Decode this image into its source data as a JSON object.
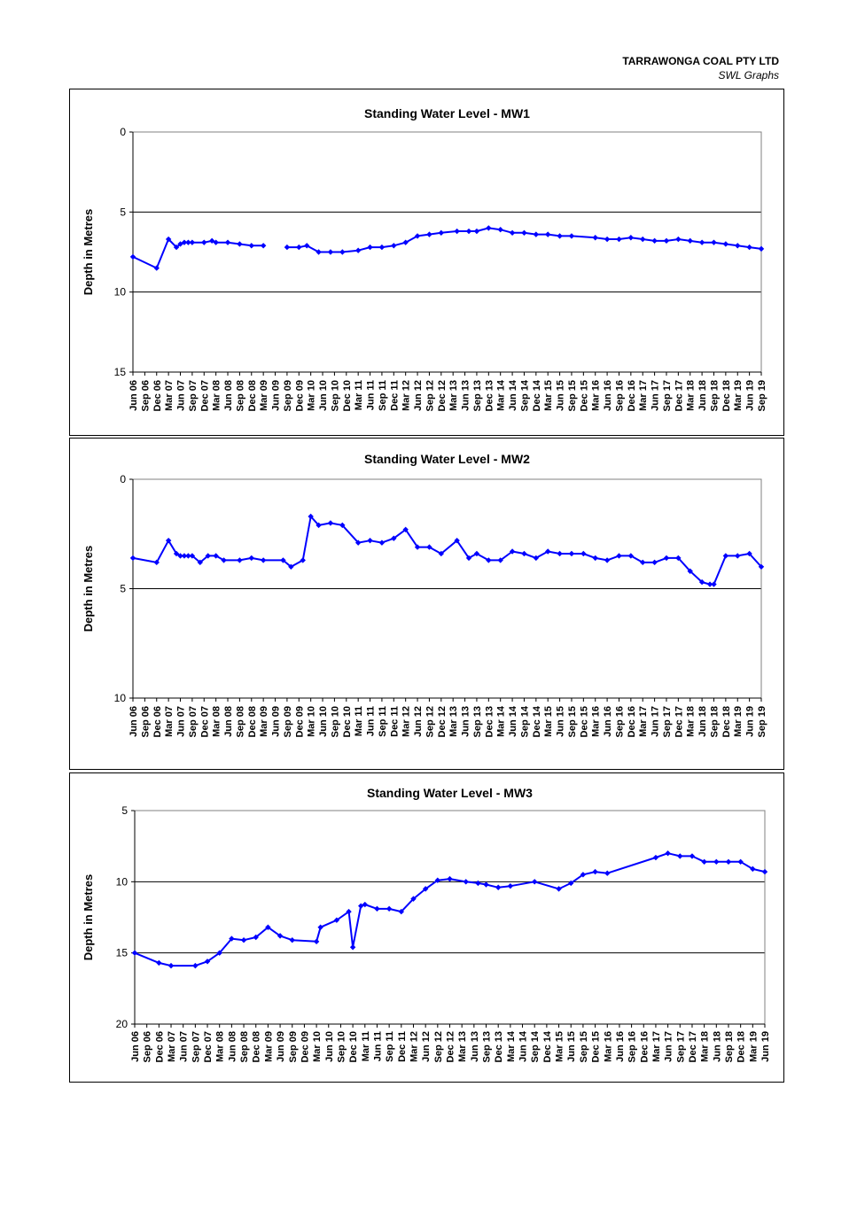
{
  "header": {
    "company": "TARRAWONGA COAL PTY LTD",
    "subtitle": "SWL Graphs"
  },
  "style": {
    "line_color": "#0000ff",
    "grid_color": "#000000"
  },
  "chart_data": [
    {
      "type": "line",
      "title": "Standing Water Level - MW1",
      "ylabel": "Depth in Metres",
      "xlabel": "",
      "y_inverted": true,
      "ylim": [
        0,
        15
      ],
      "yticks": [
        0,
        5,
        10,
        15
      ],
      "grid": "horizontal",
      "legend": "none",
      "x_range": [
        "2006-06",
        "2019-09"
      ],
      "x_tick_labels": [
        "Jun 06",
        "Sep 06",
        "Dec 06",
        "Mar 07",
        "Jun 07",
        "Sep 07",
        "Dec 07",
        "Mar 08",
        "Jun 08",
        "Sep 08",
        "Dec 08",
        "Mar 09",
        "Jun 09",
        "Sep 09",
        "Dec 09",
        "Mar 10",
        "Jun 10",
        "Sep 10",
        "Dec 10",
        "Mar 11",
        "Jun 11",
        "Sep 11",
        "Dec 11",
        "Mar 12",
        "Jun 12",
        "Sep 12",
        "Dec 12",
        "Mar 13",
        "Jun 13",
        "Sep 13",
        "Dec 13",
        "Mar 14",
        "Jun 14",
        "Sep 14",
        "Dec 14",
        "Mar 15",
        "Jun 15",
        "Sep 15",
        "Dec 15",
        "Mar 16",
        "Jun 16",
        "Sep 16",
        "Dec 16",
        "Mar 17",
        "Jun 17",
        "Sep 17",
        "Dec 17",
        "Mar 18",
        "Jun 18",
        "Sep 18",
        "Dec 18",
        "Mar 19",
        "Jun 19",
        "Sep 19"
      ],
      "series": [
        {
          "segments": [
            [
              [
                "2006-06",
                7.8
              ],
              [
                "2006-12",
                8.5
              ],
              [
                "2007-03",
                6.7
              ],
              [
                "2007-05",
                7.2
              ],
              [
                "2007-06",
                7.0
              ],
              [
                "2007-07",
                6.9
              ],
              [
                "2007-08",
                6.9
              ],
              [
                "2007-09",
                6.9
              ],
              [
                "2007-12",
                6.9
              ],
              [
                "2008-02",
                6.8
              ],
              [
                "2008-03",
                6.9
              ],
              [
                "2008-06",
                6.9
              ],
              [
                "2008-09",
                7.0
              ],
              [
                "2008-12",
                7.1
              ],
              [
                "2009-03",
                7.1
              ]
            ],
            [
              [
                "2009-09",
                7.2
              ],
              [
                "2009-12",
                7.2
              ],
              [
                "2010-02",
                7.1
              ],
              [
                "2010-05",
                7.5
              ],
              [
                "2010-08",
                7.5
              ],
              [
                "2010-11",
                7.5
              ],
              [
                "2011-03",
                7.4
              ],
              [
                "2011-06",
                7.2
              ],
              [
                "2011-09",
                7.2
              ],
              [
                "2011-12",
                7.1
              ],
              [
                "2012-03",
                6.9
              ],
              [
                "2012-06",
                6.5
              ],
              [
                "2012-09",
                6.4
              ],
              [
                "2012-12",
                6.3
              ],
              [
                "2013-04",
                6.2
              ],
              [
                "2013-07",
                6.2
              ],
              [
                "2013-09",
                6.2
              ],
              [
                "2013-12",
                6.0
              ],
              [
                "2014-03",
                6.1
              ],
              [
                "2014-06",
                6.3
              ],
              [
                "2014-09",
                6.3
              ],
              [
                "2014-12",
                6.4
              ],
              [
                "2015-03",
                6.4
              ],
              [
                "2015-06",
                6.5
              ],
              [
                "2015-09",
                6.5
              ],
              [
                "2016-03",
                6.6
              ],
              [
                "2016-06",
                6.7
              ],
              [
                "2016-09",
                6.7
              ],
              [
                "2016-12",
                6.6
              ],
              [
                "2017-03",
                6.7
              ],
              [
                "2017-06",
                6.8
              ],
              [
                "2017-09",
                6.8
              ],
              [
                "2017-12",
                6.7
              ],
              [
                "2018-03",
                6.8
              ],
              [
                "2018-06",
                6.9
              ],
              [
                "2018-09",
                6.9
              ],
              [
                "2018-12",
                7.0
              ],
              [
                "2019-03",
                7.1
              ],
              [
                "2019-06",
                7.2
              ],
              [
                "2019-09",
                7.3
              ]
            ]
          ]
        }
      ]
    },
    {
      "type": "line",
      "title": "Standing Water Level - MW2",
      "ylabel": "Depth in Metres",
      "xlabel": "",
      "y_inverted": true,
      "ylim": [
        0,
        10
      ],
      "yticks": [
        0,
        5,
        10
      ],
      "grid": "horizontal",
      "legend": "none",
      "x_range": [
        "2006-06",
        "2019-09"
      ],
      "x_tick_labels": [
        "Jun 06",
        "Sep 06",
        "Dec 06",
        "Mar 07",
        "Jun 07",
        "Sep 07",
        "Dec 07",
        "Mar 08",
        "Jun 08",
        "Sep 08",
        "Dec 08",
        "Mar 09",
        "Jun 09",
        "Sep 09",
        "Dec 09",
        "Mar 10",
        "Jun 10",
        "Sep 10",
        "Dec 10",
        "Mar 11",
        "Jun 11",
        "Sep 11",
        "Dec 11",
        "Mar 12",
        "Jun 12",
        "Sep 12",
        "Dec 12",
        "Mar 13",
        "Jun 13",
        "Sep 13",
        "Dec 13",
        "Mar 14",
        "Jun 14",
        "Sep 14",
        "Dec 14",
        "Mar 15",
        "Jun 15",
        "Sep 15",
        "Dec 15",
        "Mar 16",
        "Jun 16",
        "Sep 16",
        "Dec 16",
        "Mar 17",
        "Jun 17",
        "Sep 17",
        "Dec 17",
        "Mar 18",
        "Jun 18",
        "Sep 18",
        "Dec 18",
        "Mar 19",
        "Jun 19",
        "Sep 19"
      ],
      "series": [
        {
          "segments": [
            [
              [
                "2006-06",
                3.6
              ],
              [
                "2006-12",
                3.8
              ],
              [
                "2007-03",
                2.8
              ],
              [
                "2007-05",
                3.4
              ],
              [
                "2007-06",
                3.5
              ],
              [
                "2007-07",
                3.5
              ],
              [
                "2007-08",
                3.5
              ],
              [
                "2007-09",
                3.5
              ],
              [
                "2007-11",
                3.8
              ],
              [
                "2008-01",
                3.5
              ],
              [
                "2008-03",
                3.5
              ],
              [
                "2008-05",
                3.7
              ],
              [
                "2008-09",
                3.7
              ],
              [
                "2008-12",
                3.6
              ],
              [
                "2009-03",
                3.7
              ],
              [
                "2009-08",
                3.7
              ],
              [
                "2009-10",
                4.0
              ],
              [
                "2010-01",
                3.7
              ],
              [
                "2010-03",
                1.7
              ],
              [
                "2010-05",
                2.1
              ],
              [
                "2010-08",
                2.0
              ],
              [
                "2010-11",
                2.1
              ],
              [
                "2011-03",
                2.9
              ],
              [
                "2011-06",
                2.8
              ],
              [
                "2011-09",
                2.9
              ],
              [
                "2011-12",
                2.7
              ],
              [
                "2012-03",
                2.3
              ],
              [
                "2012-06",
                3.1
              ],
              [
                "2012-09",
                3.1
              ],
              [
                "2012-12",
                3.4
              ],
              [
                "2013-04",
                2.8
              ],
              [
                "2013-07",
                3.6
              ],
              [
                "2013-09",
                3.4
              ],
              [
                "2013-12",
                3.7
              ],
              [
                "2014-03",
                3.7
              ],
              [
                "2014-06",
                3.3
              ],
              [
                "2014-09",
                3.4
              ],
              [
                "2014-12",
                3.6
              ],
              [
                "2015-03",
                3.3
              ],
              [
                "2015-06",
                3.4
              ],
              [
                "2015-09",
                3.4
              ],
              [
                "2015-12",
                3.4
              ],
              [
                "2016-03",
                3.6
              ],
              [
                "2016-06",
                3.7
              ],
              [
                "2016-09",
                3.5
              ],
              [
                "2016-12",
                3.5
              ],
              [
                "2017-03",
                3.8
              ],
              [
                "2017-06",
                3.8
              ],
              [
                "2017-09",
                3.6
              ],
              [
                "2017-12",
                3.6
              ],
              [
                "2018-03",
                4.2
              ],
              [
                "2018-06",
                4.7
              ],
              [
                "2018-08",
                4.8
              ],
              [
                "2018-09",
                4.8
              ],
              [
                "2018-12",
                3.5
              ],
              [
                "2019-03",
                3.5
              ],
              [
                "2019-06",
                3.4
              ],
              [
                "2019-09",
                4.0
              ]
            ]
          ]
        }
      ]
    },
    {
      "type": "line",
      "title": "Standing Water Level - MW3",
      "ylabel": "Depth in Metres",
      "xlabel": "",
      "y_inverted": true,
      "ylim": [
        5,
        20
      ],
      "yticks": [
        5,
        10,
        15,
        20
      ],
      "grid": "horizontal",
      "legend": "none",
      "x_range": [
        "2006-06",
        "2019-06"
      ],
      "x_tick_labels": [
        "Jun 06",
        "Sep 06",
        "Dec 06",
        "Mar 07",
        "Jun 07",
        "Sep 07",
        "Dec 07",
        "Mar 08",
        "Jun 08",
        "Sep 08",
        "Dec 08",
        "Mar 09",
        "Jun 09",
        "Sep 09",
        "Dec 09",
        "Mar 10",
        "Jun 10",
        "Sep 10",
        "Dec 10",
        "Mar 11",
        "Jun 11",
        "Sep 11",
        "Dec 11",
        "Mar 12",
        "Jun 12",
        "Sep 12",
        "Dec 12",
        "Mar 13",
        "Jun 13",
        "Sep 13",
        "Dec 13",
        "Mar 14",
        "Jun 14",
        "Sep 14",
        "Dec 14",
        "Mar 15",
        "Jun 15",
        "Sep 15",
        "Dec 15",
        "Mar 16",
        "Jun 16",
        "Sep 16",
        "Dec 16",
        "Mar 17",
        "Jun 17",
        "Sep 17",
        "Dec 17",
        "Mar 18",
        "Jun 18",
        "Sep 18",
        "Dec 18",
        "Mar 19",
        "Jun 19"
      ],
      "series": [
        {
          "segments": [
            [
              [
                "2006-06",
                15.0
              ],
              [
                "2006-12",
                15.7
              ],
              [
                "2007-03",
                15.9
              ],
              [
                "2007-09",
                15.9
              ],
              [
                "2007-12",
                15.6
              ],
              [
                "2008-03",
                15.0
              ],
              [
                "2008-06",
                14.0
              ],
              [
                "2008-09",
                14.1
              ],
              [
                "2008-12",
                13.9
              ],
              [
                "2009-03",
                13.2
              ],
              [
                "2009-06",
                13.8
              ],
              [
                "2009-09",
                14.1
              ],
              [
                "2010-03",
                14.2
              ],
              [
                "2010-04",
                13.2
              ],
              [
                "2010-08",
                12.7
              ],
              [
                "2010-11",
                12.1
              ],
              [
                "2010-12",
                14.6
              ],
              [
                "2011-02",
                11.7
              ],
              [
                "2011-03",
                11.6
              ],
              [
                "2011-06",
                11.9
              ],
              [
                "2011-09",
                11.9
              ],
              [
                "2011-12",
                12.1
              ],
              [
                "2012-03",
                11.2
              ],
              [
                "2012-06",
                10.5
              ],
              [
                "2012-09",
                9.9
              ],
              [
                "2012-12",
                9.8
              ],
              [
                "2013-04",
                10.0
              ],
              [
                "2013-07",
                10.1
              ],
              [
                "2013-09",
                10.2
              ],
              [
                "2013-12",
                10.4
              ],
              [
                "2014-03",
                10.3
              ],
              [
                "2014-09",
                10.0
              ],
              [
                "2015-03",
                10.5
              ],
              [
                "2015-06",
                10.1
              ],
              [
                "2015-09",
                9.5
              ],
              [
                "2015-12",
                9.3
              ],
              [
                "2016-03",
                9.4
              ],
              [
                "2017-03",
                8.3
              ],
              [
                "2017-06",
                8.0
              ],
              [
                "2017-09",
                8.2
              ],
              [
                "2017-12",
                8.2
              ],
              [
                "2018-03",
                8.6
              ],
              [
                "2018-06",
                8.6
              ],
              [
                "2018-09",
                8.6
              ],
              [
                "2018-12",
                8.6
              ],
              [
                "2019-03",
                9.1
              ],
              [
                "2019-06",
                9.3
              ]
            ]
          ]
        }
      ]
    }
  ]
}
